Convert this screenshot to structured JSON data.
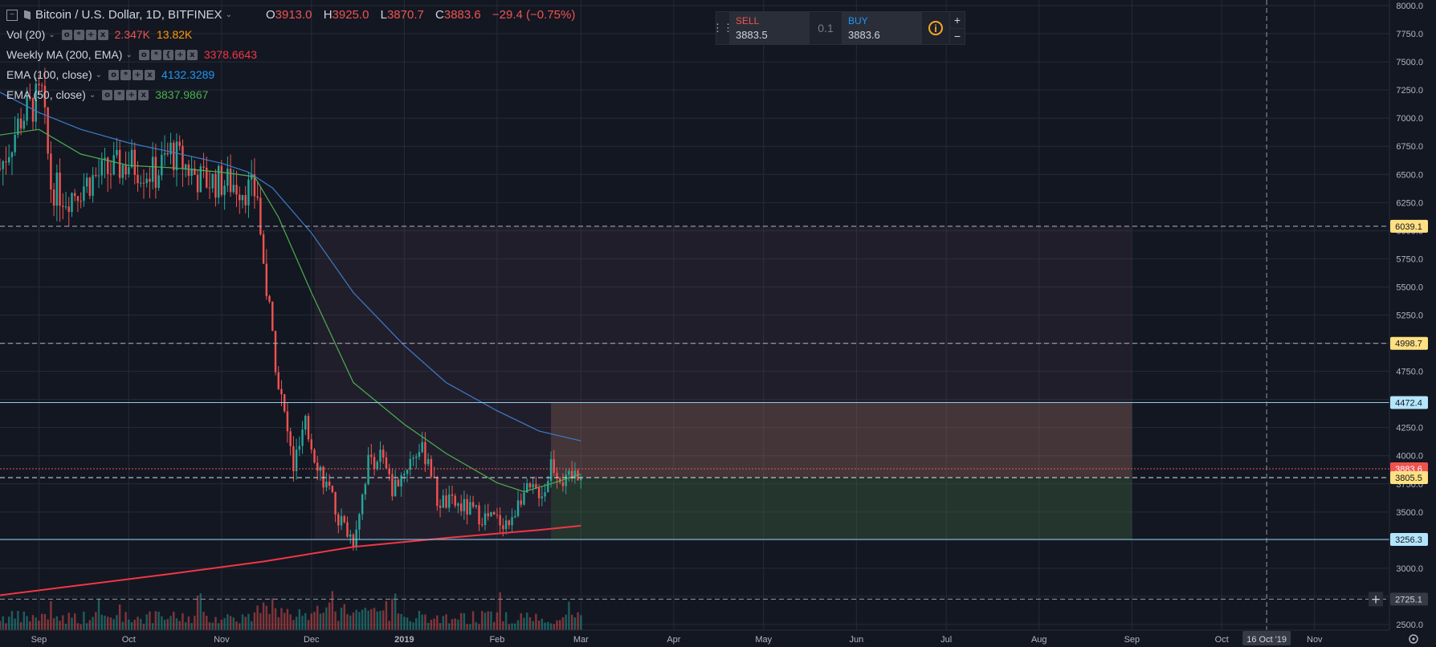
{
  "header": {
    "symbol": "Bitcoin / U.S. Dollar, 1D, BITFINEX",
    "ohlc": [
      {
        "key": "O",
        "value": "3913.0"
      },
      {
        "key": "H",
        "value": "3925.0"
      },
      {
        "key": "L",
        "value": "3870.7"
      },
      {
        "key": "C",
        "value": "3883.6"
      }
    ],
    "change": "−29.4 (−0.75%)"
  },
  "indicators": [
    {
      "name": "Vol (20)",
      "values": [
        "2.347K",
        "13.82K"
      ],
      "colors": [
        "#ef5350",
        "#ff9800"
      ]
    },
    {
      "name": "Weekly MA (200, EMA)",
      "values": [
        "3378.6643"
      ],
      "colors": [
        "#f23645"
      ]
    },
    {
      "name": "EMA (100, close)",
      "values": [
        "4132.3289"
      ],
      "colors": [
        "#2196f3"
      ]
    },
    {
      "name": "EMA (50, close)",
      "values": [
        "3837.9867"
      ],
      "colors": [
        "#4caf50"
      ]
    }
  ],
  "trade_panel": {
    "sell_label": "SELL",
    "sell_price": "3883.5",
    "quantity": "0.1",
    "buy_label": "BUY",
    "buy_price": "3883.6",
    "plus": "+",
    "minus": "−"
  },
  "chart_data": {
    "type": "candlestick",
    "title": "Bitcoin / U.S. Dollar, 1D, BITFINEX",
    "ylim": [
      2450,
      8050
    ],
    "y_ticks": [
      2500,
      2750,
      3000,
      3250,
      3500,
      3750,
      4000,
      4250,
      4500,
      4750,
      5000,
      5250,
      5500,
      5750,
      6000,
      6250,
      6500,
      6750,
      7000,
      7250,
      7500,
      7750,
      8000
    ],
    "x_range": [
      "2018-08-19",
      "2019-11-26"
    ],
    "x_ticks": [
      {
        "label": "Sep",
        "date": "2018-09-01",
        "bold": false
      },
      {
        "label": "Oct",
        "date": "2018-10-01",
        "bold": false
      },
      {
        "label": "Nov",
        "date": "2018-11-01",
        "bold": false
      },
      {
        "label": "Dec",
        "date": "2018-12-01",
        "bold": false
      },
      {
        "label": "2019",
        "date": "2019-01-01",
        "bold": true
      },
      {
        "label": "Feb",
        "date": "2019-02-01",
        "bold": false
      },
      {
        "label": "Mar",
        "date": "2019-03-01",
        "bold": false
      },
      {
        "label": "Apr",
        "date": "2019-04-01",
        "bold": false
      },
      {
        "label": "May",
        "date": "2019-05-01",
        "bold": false
      },
      {
        "label": "Jun",
        "date": "2019-06-01",
        "bold": false
      },
      {
        "label": "Jul",
        "date": "2019-07-01",
        "bold": false
      },
      {
        "label": "Aug",
        "date": "2019-08-01",
        "bold": false
      },
      {
        "label": "Sep",
        "date": "2019-09-01",
        "bold": false
      },
      {
        "label": "Oct",
        "date": "2019-10-01",
        "bold": false
      },
      {
        "label": "Nov",
        "date": "2019-11-01",
        "bold": false
      }
    ],
    "crosshair_date_label": "16 Oct '19",
    "crosshair_date": "2019-10-16",
    "crosshair_price_label": "2725.1",
    "crosshair_price": 2725.1,
    "price_lines": [
      {
        "price": 6039.1,
        "label": "6039.1",
        "style": "dashed",
        "color": "#b2b5be",
        "badge": "#ffe082"
      },
      {
        "price": 4998.7,
        "label": "4998.7",
        "style": "dashed",
        "color": "#b2b5be",
        "badge": "#ffe082"
      },
      {
        "price": 4472.4,
        "label": "4472.4",
        "style": "solid",
        "color": "#8ecff0",
        "badge": "#b3e5fc"
      },
      {
        "price": 3883.6,
        "label": "3883.6",
        "style": "dotted",
        "color": "#ef5350",
        "badge": "#ef5350"
      },
      {
        "price": 3805.5,
        "label": "3805.5",
        "style": "dashed",
        "color": "#e0e3eb",
        "badge": "#ffe082"
      },
      {
        "price": 3256.3,
        "label": "3256.3",
        "style": "solid",
        "color": "#8ecff0",
        "badge": "#b3e5fc"
      }
    ],
    "zones": [
      {
        "from_date": "2018-12-02",
        "to_date": "2019-09-01",
        "top": 6039.1,
        "bottom": 3256.3,
        "color": "rgba(120,80,100,0.14)"
      },
      {
        "from_date": "2019-02-19",
        "to_date": "2019-09-01",
        "top": 4472.4,
        "bottom": 3805.5,
        "color": "rgba(150,110,90,0.30)"
      },
      {
        "from_date": "2019-02-19",
        "to_date": "2019-09-01",
        "top": 3805.5,
        "bottom": 3256.3,
        "color": "rgba(46,125,50,0.25)"
      }
    ],
    "series": [
      {
        "name": "EMA (100, close)",
        "color": "#3d7cc9",
        "points": [
          [
            "2018-08-19",
            7230
          ],
          [
            "2018-09-01",
            7050
          ],
          [
            "2018-09-15",
            6900
          ],
          [
            "2018-10-01",
            6780
          ],
          [
            "2018-10-15",
            6700
          ],
          [
            "2018-11-01",
            6600
          ],
          [
            "2018-11-10",
            6520
          ],
          [
            "2018-11-18",
            6380
          ],
          [
            "2018-12-01",
            5980
          ],
          [
            "2018-12-15",
            5450
          ],
          [
            "2019-01-01",
            4980
          ],
          [
            "2019-01-15",
            4650
          ],
          [
            "2019-02-01",
            4400
          ],
          [
            "2019-02-15",
            4220
          ],
          [
            "2019-03-01",
            4132
          ]
        ]
      },
      {
        "name": "EMA (50, close)",
        "color": "#4caf50",
        "points": [
          [
            "2018-08-19",
            6850
          ],
          [
            "2018-09-01",
            6900
          ],
          [
            "2018-09-15",
            6680
          ],
          [
            "2018-10-01",
            6580
          ],
          [
            "2018-10-15",
            6560
          ],
          [
            "2018-11-01",
            6520
          ],
          [
            "2018-11-12",
            6480
          ],
          [
            "2018-11-20",
            6120
          ],
          [
            "2018-12-01",
            5450
          ],
          [
            "2018-12-15",
            4650
          ],
          [
            "2019-01-01",
            4280
          ],
          [
            "2019-01-15",
            4020
          ],
          [
            "2019-02-01",
            3760
          ],
          [
            "2019-02-10",
            3680
          ],
          [
            "2019-02-20",
            3760
          ],
          [
            "2019-03-01",
            3838
          ]
        ]
      },
      {
        "name": "Weekly MA (200, EMA)",
        "color": "#f23645",
        "points": [
          [
            "2018-08-19",
            2760
          ],
          [
            "2018-09-15",
            2850
          ],
          [
            "2018-10-15",
            2950
          ],
          [
            "2018-11-15",
            3060
          ],
          [
            "2018-12-15",
            3190
          ],
          [
            "2019-01-15",
            3270
          ],
          [
            "2019-02-15",
            3340
          ],
          [
            "2019-03-01",
            3378
          ]
        ]
      }
    ],
    "volume_scale_max": 3080
  }
}
